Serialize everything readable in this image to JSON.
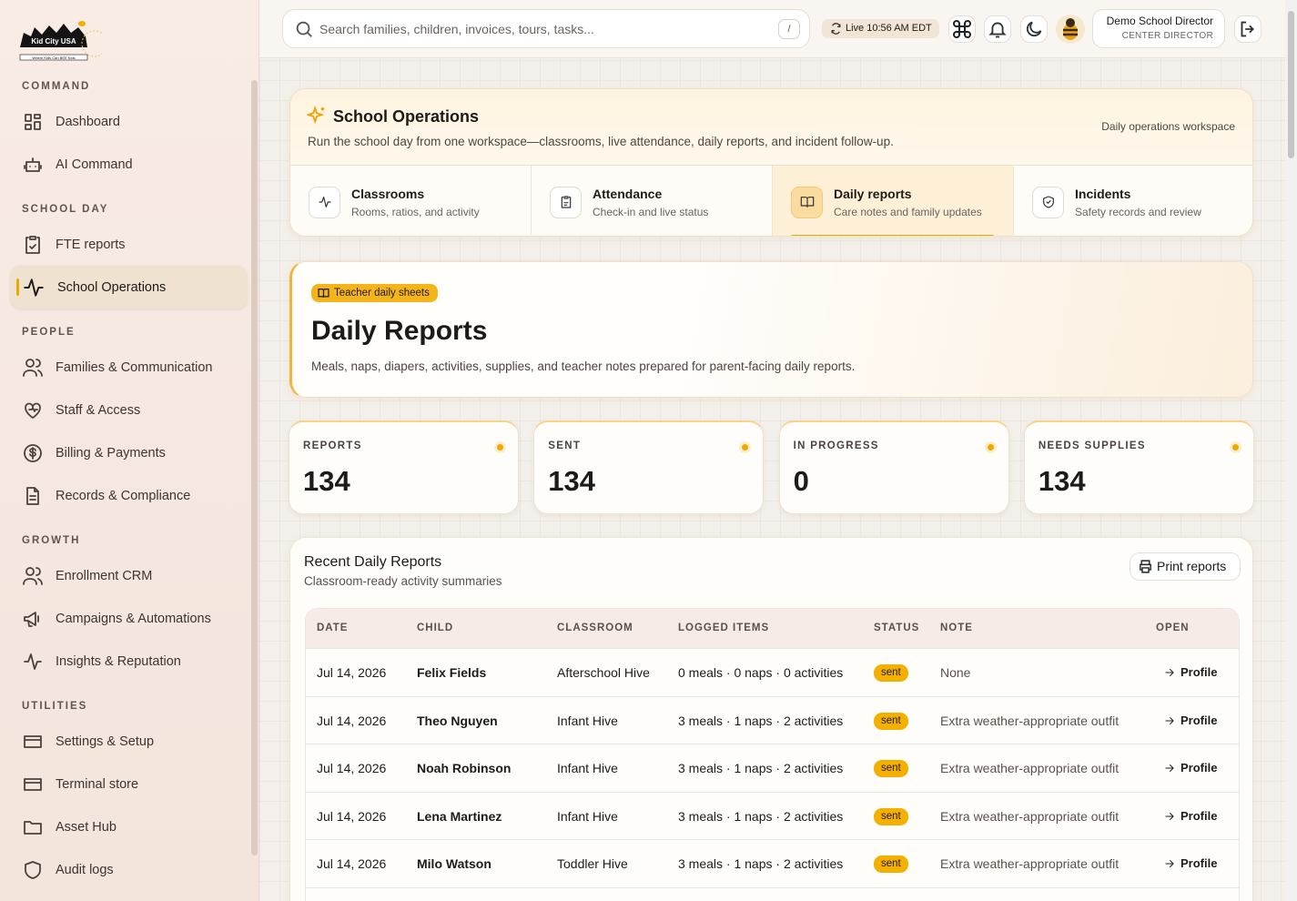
{
  "sidebar": {
    "logo": {
      "name": "Kid City USA",
      "tagline": "Where Kids Can BEE Kids"
    },
    "sections": [
      {
        "title": "COMMAND",
        "items": [
          {
            "label": "Dashboard"
          },
          {
            "label": "AI Command"
          }
        ]
      },
      {
        "title": "SCHOOL DAY",
        "items": [
          {
            "label": "FTE reports"
          },
          {
            "label": "School Operations",
            "active": true
          }
        ]
      },
      {
        "title": "PEOPLE",
        "items": [
          {
            "label": "Families & Communication"
          },
          {
            "label": "Staff & Access"
          },
          {
            "label": "Billing & Payments"
          },
          {
            "label": "Records & Compliance"
          }
        ]
      },
      {
        "title": "GROWTH",
        "items": [
          {
            "label": "Enrollment CRM"
          },
          {
            "label": "Campaigns & Automations"
          },
          {
            "label": "Insights & Reputation"
          }
        ]
      },
      {
        "title": "UTILITIES",
        "items": [
          {
            "label": "Settings & Setup"
          },
          {
            "label": "Terminal store"
          },
          {
            "label": "Asset Hub"
          },
          {
            "label": "Audit logs"
          }
        ]
      }
    ]
  },
  "topbar": {
    "search_placeholder": "Search families, children, invoices, tours, tasks...",
    "search_shortcut": "/",
    "live_status": "Live 10:56 AM EDT",
    "user": {
      "name": "Demo School Director",
      "role": "CENTER DIRECTOR"
    }
  },
  "operations": {
    "title": "School Operations",
    "subtitle": "Run the school day from one workspace—classrooms, live attendance, daily reports, and incident follow-up.",
    "workspace_label": "Daily operations workspace",
    "tabs": [
      {
        "title": "Classrooms",
        "description": "Rooms, ratios, and activity"
      },
      {
        "title": "Attendance",
        "description": "Check-in and live status"
      },
      {
        "title": "Daily reports",
        "description": "Care notes and family updates",
        "active": true
      },
      {
        "title": "Incidents",
        "description": "Safety records and review"
      }
    ]
  },
  "hero": {
    "badge": "Teacher daily sheets",
    "title": "Daily Reports",
    "description": "Meals, naps, diapers, activities, supplies, and teacher notes prepared for parent-facing daily reports."
  },
  "stats": [
    {
      "label": "REPORTS",
      "value": 134
    },
    {
      "label": "SENT",
      "value": 134
    },
    {
      "label": "IN PROGRESS",
      "value": 0
    },
    {
      "label": "NEEDS SUPPLIES",
      "value": 134
    }
  ],
  "table": {
    "title": "Recent Daily Reports",
    "subtitle": "Classroom-ready activity summaries",
    "action": "Print reports",
    "columns": [
      "DATE",
      "CHILD",
      "CLASSROOM",
      "LOGGED ITEMS",
      "STATUS",
      "NOTE",
      "OPEN"
    ],
    "rows": [
      [
        "Jul 14, 2026",
        "Felix Fields",
        "Afterschool Hive",
        "0 meals · 0 naps · 0 activities",
        "sent",
        "None",
        "Profile"
      ],
      [
        "Jul 14, 2026",
        "Theo Nguyen",
        "Infant Hive",
        "3 meals · 1 naps · 2 activities",
        "sent",
        "Extra weather-appropriate outfit",
        "Profile"
      ],
      [
        "Jul 14, 2026",
        "Noah Robinson",
        "Infant Hive",
        "3 meals · 1 naps · 2 activities",
        "sent",
        "Extra weather-appropriate outfit",
        "Profile"
      ],
      [
        "Jul 14, 2026",
        "Lena Martinez",
        "Infant Hive",
        "3 meals · 1 naps · 2 activities",
        "sent",
        "Extra weather-appropriate outfit",
        "Profile"
      ],
      [
        "Jul 14, 2026",
        "Milo Watson",
        "Toddler Hive",
        "3 meals · 1 naps · 2 activities",
        "sent",
        "Extra weather-appropriate outfit",
        "Profile"
      ]
    ]
  }
}
